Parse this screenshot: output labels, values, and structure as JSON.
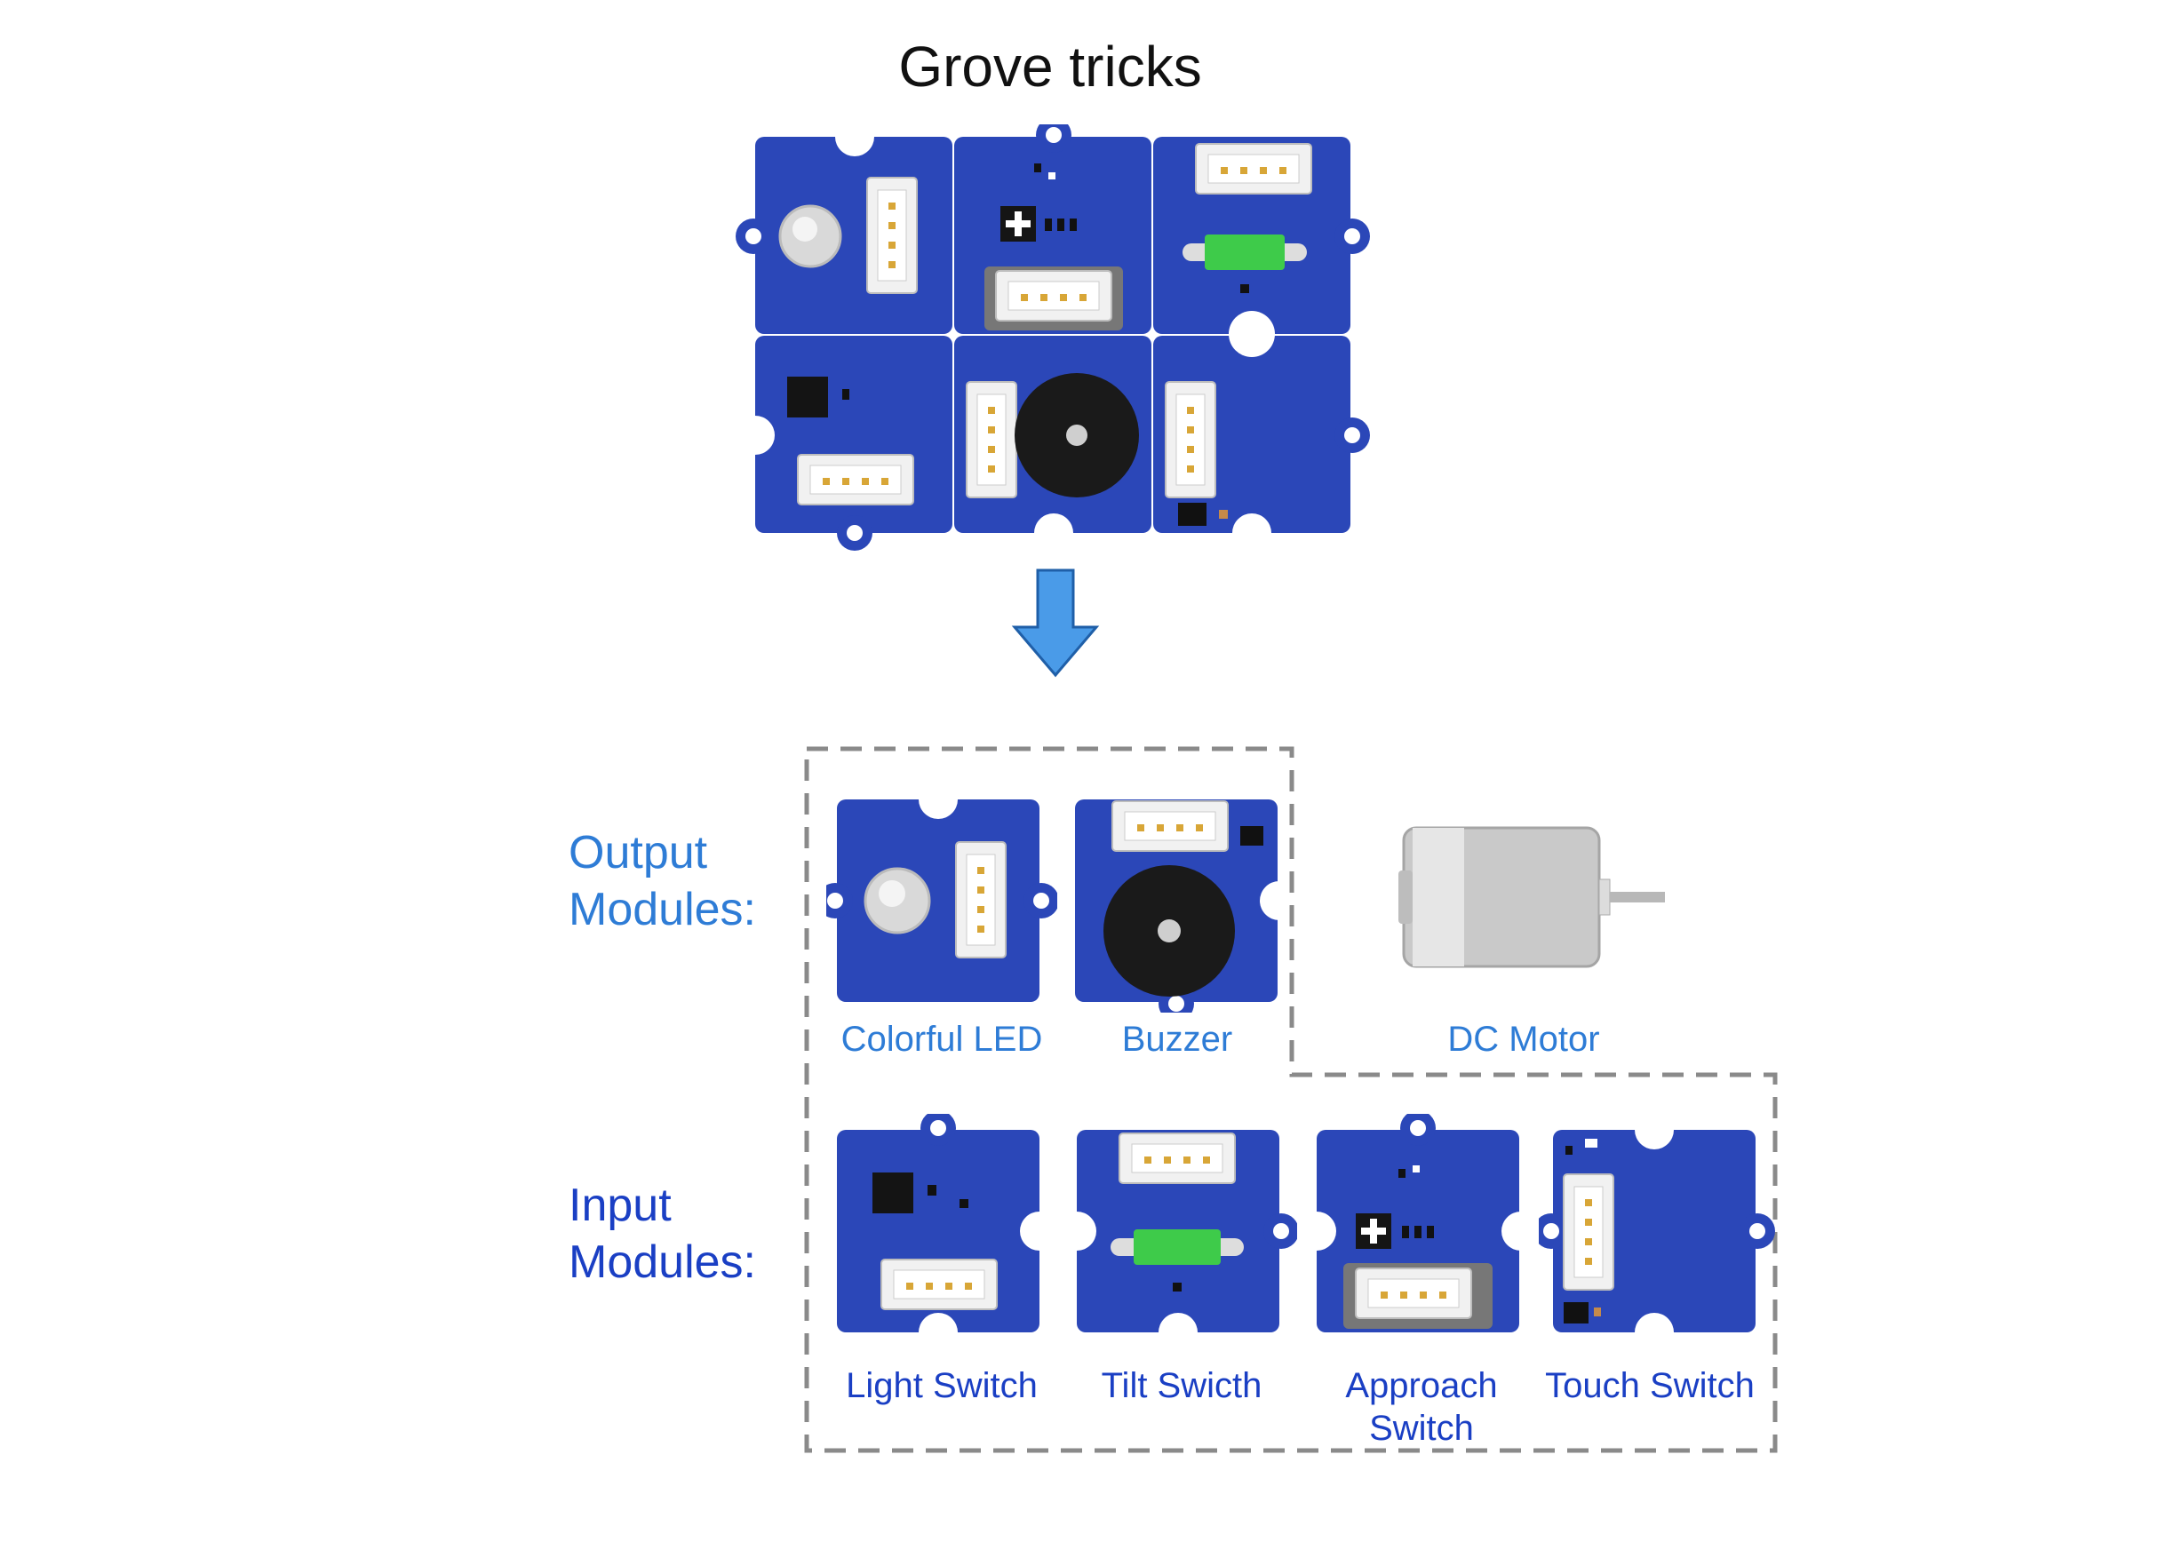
{
  "title": "Grove tricks",
  "sections": {
    "output": {
      "label_line1": "Output",
      "label_line2": "Modules:"
    },
    "input": {
      "label_line1": "Input",
      "label_line2": "Modules:"
    }
  },
  "modules": {
    "colorful_led": "Colorful LED",
    "buzzer": "Buzzer",
    "dc_motor": "DC Motor",
    "light_switch": "Light Switch",
    "tilt_switch": "Tilt Swicth",
    "approach_switch_line1": "Approach",
    "approach_switch_line2": "Switch",
    "touch_switch": "Touch Switch"
  },
  "colors": {
    "board": "#2b47b8",
    "output_label": "#2e7cd6",
    "input_label": "#1a3fc4",
    "arrow": "#4a9be8",
    "dashed_border": "#8a8a8a"
  }
}
